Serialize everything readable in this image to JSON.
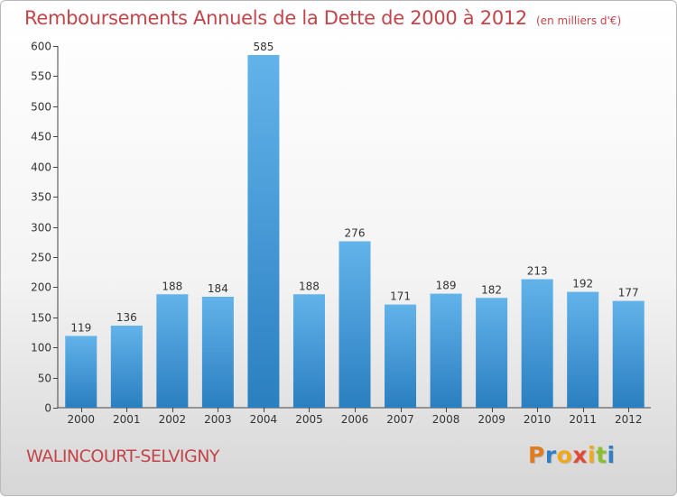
{
  "header": {
    "title": "Remboursements Annuels de la Dette de 2000 à 2012",
    "unit": "(en milliers d'€)"
  },
  "footer": {
    "city": "WALINCOURT-SELVIGNY",
    "logo": {
      "text": "Proxiti",
      "letter_colors": [
        "#e07b1f",
        "#2f7fc6",
        "#f0a81c",
        "#e04b36",
        "#f0a81c",
        "#8bbf2c",
        "#2f7fc6"
      ]
    }
  },
  "colors": {
    "accent": "#c2454a",
    "bar_top": "#62b3ea",
    "bar_bottom": "#2a7fc0"
  },
  "chart_data": {
    "type": "bar",
    "title": "Remboursements Annuels de la Dette de 2000 à 2012",
    "xlabel": "",
    "ylabel": "",
    "categories": [
      "2000",
      "2001",
      "2002",
      "2003",
      "2004",
      "2005",
      "2006",
      "2007",
      "2008",
      "2009",
      "2010",
      "2011",
      "2012"
    ],
    "values": [
      119,
      136,
      188,
      184,
      585,
      188,
      276,
      171,
      189,
      182,
      213,
      192,
      177
    ],
    "ylim": [
      0,
      600
    ],
    "yticks": [
      0,
      50,
      100,
      150,
      200,
      250,
      300,
      350,
      400,
      450,
      500,
      550,
      600
    ],
    "grid": false,
    "data_labels": true
  }
}
